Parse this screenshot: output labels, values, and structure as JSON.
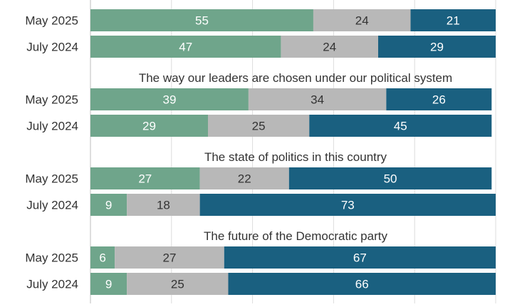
{
  "chart_data": {
    "type": "bar",
    "orientation": "horizontal",
    "stacked": true,
    "x_range": [
      0,
      100
    ],
    "grid": true,
    "colors": [
      "#6fa58b",
      "#b8b8b8",
      "#1a6080"
    ],
    "groups": [
      {
        "title": "",
        "rows": [
          {
            "label": "May 2025",
            "values": [
              55,
              24,
              21
            ]
          },
          {
            "label": "July 2024",
            "values": [
              47,
              24,
              29
            ]
          }
        ]
      },
      {
        "title": "The way our leaders are chosen under our political system",
        "rows": [
          {
            "label": "May 2025",
            "values": [
              39,
              34,
              26
            ]
          },
          {
            "label": "July 2024",
            "values": [
              29,
              25,
              45
            ]
          }
        ]
      },
      {
        "title": "The state of politics in this country",
        "rows": [
          {
            "label": "May 2025",
            "values": [
              27,
              22,
              50
            ]
          },
          {
            "label": "July 2024",
            "values": [
              9,
              18,
              73
            ]
          }
        ]
      },
      {
        "title": "The future of the Democratic party",
        "rows": [
          {
            "label": "May 2025",
            "values": [
              6,
              27,
              67
            ]
          },
          {
            "label": "July 2024",
            "values": [
              9,
              25,
              66
            ]
          }
        ]
      }
    ]
  }
}
